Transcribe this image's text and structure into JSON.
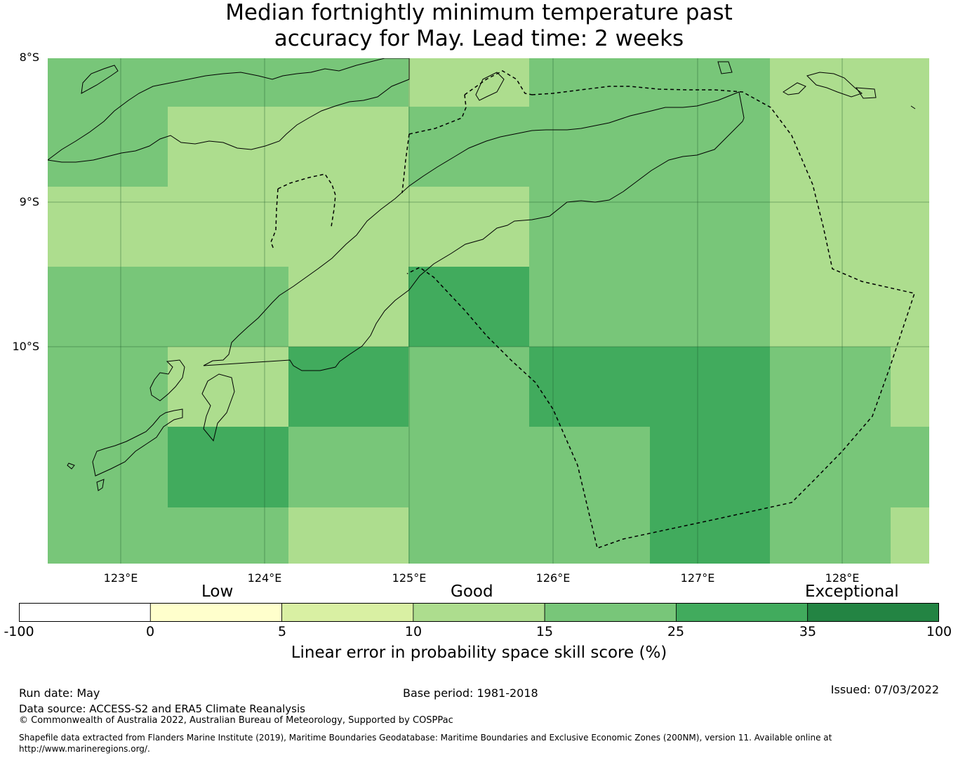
{
  "title_line1": "Median fortnightly minimum temperature past",
  "title_line2": "accuracy for May. Lead time: 2 weeks",
  "map": {
    "lat_labels": [
      "8°S",
      "9°S",
      "10°S"
    ],
    "lon_labels": [
      "123°E",
      "124°E",
      "125°E",
      "126°E",
      "127°E",
      "128°E"
    ],
    "extent": {
      "lon_min": 122.5,
      "lon_max": 128.6,
      "lat_min": -11.5,
      "lat_max": -8.0
    },
    "grid_cells_skill_bin": [
      [
        4,
        4,
        4,
        3,
        4,
        4,
        3,
        3
      ],
      [
        4,
        3,
        3,
        4,
        4,
        4,
        3,
        3
      ],
      [
        3,
        3,
        3,
        3,
        4,
        4,
        3,
        3
      ],
      [
        4,
        4,
        3,
        5,
        4,
        4,
        3,
        3
      ],
      [
        4,
        3,
        5,
        4,
        5,
        5,
        4,
        3
      ],
      [
        4,
        5,
        4,
        4,
        4,
        5,
        4,
        4
      ],
      [
        4,
        4,
        3,
        4,
        4,
        5,
        4,
        3
      ]
    ]
  },
  "colorbar": {
    "categories": [
      "Low",
      "Good",
      "Exceptional"
    ],
    "ticks": [
      "-100",
      "0",
      "5",
      "10",
      "15",
      "25",
      "35",
      "100"
    ],
    "colors": [
      "#ffffff",
      "#ffffcc",
      "#d9f0a3",
      "#addd8e",
      "#78c679",
      "#41ab5d",
      "#238443"
    ],
    "label": "Linear error in probability space skill score (%)"
  },
  "footer": {
    "run_date": "Run date: May",
    "base_period": "Base period: 1981-2018",
    "issued": "Issued: 07/03/2022",
    "data_source": "Data source: ACCESS-S2 and ERA5 Climate Reanalysis",
    "copyright": "© Commonwealth of Australia 2022, Australian Bureau of Meteorology, Supported by COSPPac",
    "shapefile_line1": "Shapefile data extracted from Flanders Marine Institute (2019), Maritime Boundaries Geodatabase: Maritime Boundaries and Exclusive Economic Zones (200NM), version 11. Available online at",
    "shapefile_line2": "http://www.marineregions.org/."
  }
}
